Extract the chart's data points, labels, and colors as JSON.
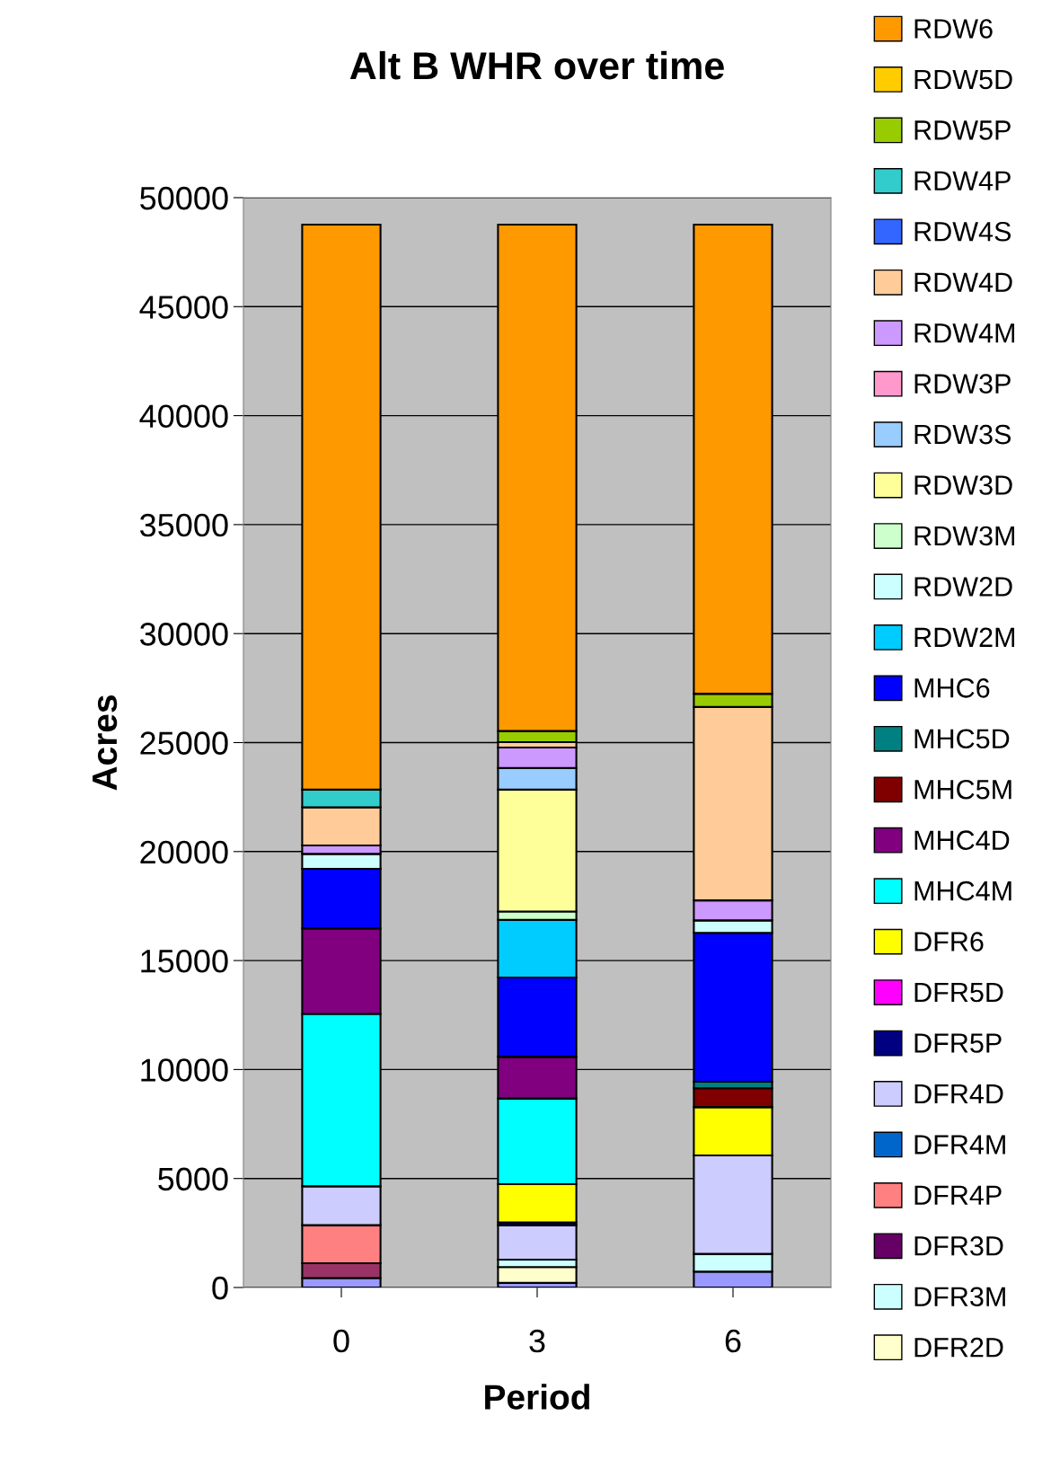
{
  "chart_data": {
    "type": "bar",
    "title": "Alt B WHR over time",
    "xlabel": "Period",
    "ylabel": "Acres",
    "categories": [
      "0",
      "3",
      "6"
    ],
    "stacked": true,
    "ylim": [
      0,
      50000
    ],
    "yticks": [
      0,
      5000,
      10000,
      15000,
      20000,
      25000,
      30000,
      35000,
      40000,
      45000,
      50000
    ],
    "grid": "y",
    "legend": "right",
    "series": [
      {
        "color": "#9999ff",
        "values": [
          430,
          210,
          730
        ]
      },
      {
        "color": "#993366",
        "values": [
          680,
          0,
          0
        ]
      },
      {
        "name": "DFR2D",
        "color": "#ffffcc",
        "values": [
          0,
          730,
          0
        ]
      },
      {
        "name": "DFR3M",
        "color": "#ccffff",
        "values": [
          0,
          340,
          810
        ]
      },
      {
        "name": "DFR3D",
        "color": "#660066",
        "values": [
          0,
          0,
          0
        ]
      },
      {
        "name": "DFR4P",
        "color": "#ff8080",
        "values": [
          1750,
          0,
          0
        ]
      },
      {
        "name": "DFR4M",
        "color": "#0066cc",
        "values": [
          0,
          0,
          0
        ]
      },
      {
        "name": "DFR4D",
        "color": "#ccccff",
        "values": [
          1790,
          1580,
          4520
        ]
      },
      {
        "name": "DFR5P",
        "color": "#000080",
        "values": [
          0,
          130,
          0
        ]
      },
      {
        "name": "DFR5D",
        "color": "#ff00ff",
        "values": [
          0,
          0,
          0
        ]
      },
      {
        "name": "DFR6",
        "color": "#ffff00",
        "values": [
          0,
          1750,
          2220
        ]
      },
      {
        "name": "MHC4M",
        "color": "#00ffff",
        "values": [
          7900,
          3930,
          0
        ]
      },
      {
        "name": "MHC4D",
        "color": "#800080",
        "values": [
          3930,
          1920,
          0
        ]
      },
      {
        "name": "MHC5M",
        "color": "#800000",
        "values": [
          0,
          0,
          860
        ]
      },
      {
        "name": "MHC5D",
        "color": "#008080",
        "values": [
          0,
          0,
          300
        ]
      },
      {
        "name": "MHC6",
        "color": "#0000ff",
        "values": [
          2730,
          3630,
          6830
        ]
      },
      {
        "name": "RDW2M",
        "color": "#00ccff",
        "values": [
          0,
          2650,
          0
        ]
      },
      {
        "name": "RDW2D",
        "color": "#ccffff",
        "values": [
          690,
          0,
          580
        ]
      },
      {
        "name": "RDW3M",
        "color": "#ccffcc",
        "values": [
          0,
          380,
          0
        ]
      },
      {
        "name": "RDW3D",
        "color": "#ffff99",
        "values": [
          0,
          5590,
          0
        ]
      },
      {
        "name": "RDW3S",
        "color": "#99ccff",
        "values": [
          0,
          990,
          0
        ]
      },
      {
        "name": "RDW3P",
        "color": "#ff99cc",
        "values": [
          0,
          0,
          0
        ]
      },
      {
        "name": "RDW4M",
        "color": "#cc99ff",
        "values": [
          380,
          940,
          910
        ]
      },
      {
        "name": "RDW4D",
        "color": "#ffcc99",
        "values": [
          1750,
          250,
          8880
        ]
      },
      {
        "name": "RDW4S",
        "color": "#3366ff",
        "values": [
          0,
          0,
          0
        ]
      },
      {
        "name": "RDW4P",
        "color": "#33cccc",
        "values": [
          810,
          0,
          0
        ]
      },
      {
        "name": "RDW5P",
        "color": "#99cc00",
        "values": [
          0,
          510,
          600
        ]
      },
      {
        "name": "RDW5D",
        "color": "#ffcc00",
        "values": [
          0,
          0,
          0
        ]
      },
      {
        "name": "RDW6",
        "color": "#ff9900",
        "values": [
          25920,
          23230,
          21520
        ]
      }
    ]
  }
}
